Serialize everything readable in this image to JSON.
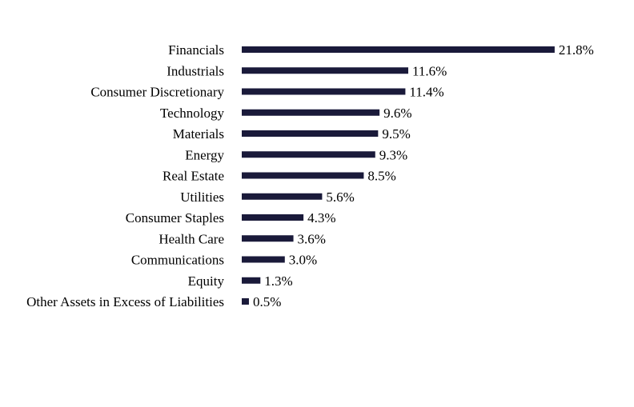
{
  "chart_data": {
    "type": "bar",
    "orientation": "horizontal",
    "categories": [
      "Financials",
      "Industrials",
      "Consumer Discretionary",
      "Technology",
      "Materials",
      "Energy",
      "Real Estate",
      "Utilities",
      "Consumer Staples",
      "Health Care",
      "Communications",
      "Equity",
      "Other Assets in Excess of Liabilities"
    ],
    "values": [
      21.8,
      11.6,
      11.4,
      9.6,
      9.5,
      9.3,
      8.5,
      5.6,
      4.3,
      3.6,
      3.0,
      1.3,
      0.5
    ],
    "value_labels": [
      "21.8%",
      "11.6%",
      "11.4%",
      "9.6%",
      "9.5%",
      "9.3%",
      "8.5%",
      "5.6%",
      "4.3%",
      "3.6%",
      "3.0%",
      "1.3%",
      "0.5%"
    ],
    "unit": "%",
    "title": "",
    "xlabel": "",
    "ylabel": "",
    "grid": false,
    "legend": "none",
    "bar_color": "#1a1a3a"
  }
}
